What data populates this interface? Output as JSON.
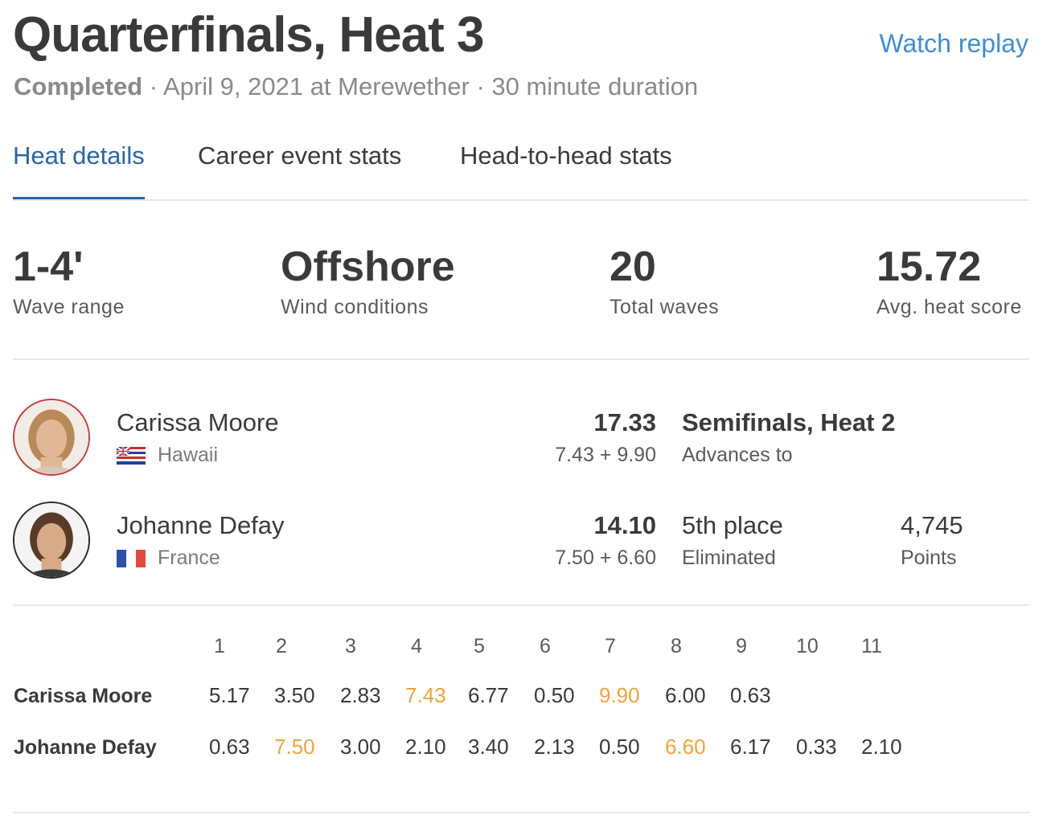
{
  "header": {
    "title": "Quarterfinals, Heat 3",
    "watch_replay": "Watch replay",
    "status": "Completed",
    "details": " · April 9, 2021 at Merewether · 30 minute duration"
  },
  "tabs": [
    {
      "label": "Heat details",
      "active": true
    },
    {
      "label": "Career event stats",
      "active": false
    },
    {
      "label": "Head-to-head stats",
      "active": false
    }
  ],
  "stats": [
    {
      "value": "1-4'",
      "label": "Wave range"
    },
    {
      "value": "Offshore",
      "label": "Wind conditions"
    },
    {
      "value": "20",
      "label": "Total waves"
    },
    {
      "value": "15.72",
      "label": "Avg. heat score"
    }
  ],
  "athletes": [
    {
      "name": "Carissa Moore",
      "country": "Hawaii",
      "flag_icon": "hawaii-flag-icon",
      "total": "17.33",
      "counting": "7.43 + 9.90",
      "result": "Semifinals, Heat 2",
      "result_sub": "Advances to"
    },
    {
      "name": "Johanne Defay",
      "country": "France",
      "flag_icon": "france-flag-icon",
      "total": "14.10",
      "counting": "7.50 + 6.60",
      "result": "5th place",
      "result_sub": "Eliminated",
      "points": "4,745",
      "points_label": "Points"
    }
  ],
  "wave_table": {
    "wave_numbers": [
      "1",
      "2",
      "3",
      "4",
      "5",
      "6",
      "7",
      "8",
      "9",
      "10",
      "11"
    ],
    "rows": [
      {
        "name": "Carissa Moore",
        "scores": [
          "5.17",
          "3.50",
          "2.83",
          "7.43",
          "6.77",
          "0.50",
          "9.90",
          "6.00",
          "0.63"
        ],
        "best": [
          3,
          6
        ]
      },
      {
        "name": "Johanne Defay",
        "scores": [
          "0.63",
          "7.50",
          "3.00",
          "2.10",
          "3.40",
          "2.13",
          "0.50",
          "6.60",
          "6.17",
          "0.33",
          "2.10"
        ],
        "best": [
          1,
          7
        ]
      }
    ]
  },
  "colors": {
    "accent_link": "#3d8ed9",
    "active_tab": "#2a65a8",
    "best_wave": "#f0a436",
    "winner_ring": "#cc3b3b"
  }
}
